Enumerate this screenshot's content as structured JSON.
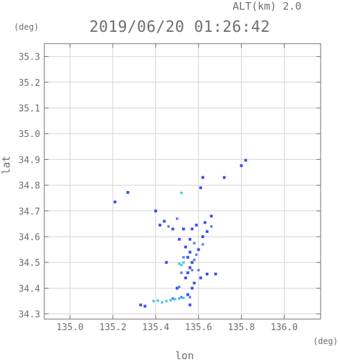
{
  "header": {
    "altitude_label": "ALT(km) 2.0",
    "timestamp": "2019/06/20 01:26:42"
  },
  "chart_data": {
    "type": "scatter",
    "title": "2019/06/20 01:26:42",
    "xlabel": "lon",
    "ylabel": "lat",
    "x_unit": "(deg)",
    "y_unit": "(deg)",
    "xlim": [
      134.88,
      136.17
    ],
    "ylim": [
      34.28,
      35.35
    ],
    "x_ticks": [
      135.0,
      135.2,
      135.4,
      135.6,
      135.8,
      136.0
    ],
    "x_tick_labels": [
      "135.0",
      "135.2",
      "135.4",
      "135.6",
      "135.8",
      "136.0"
    ],
    "y_ticks": [
      34.3,
      34.4,
      34.5,
      34.6,
      34.7,
      34.8,
      34.9,
      35.0,
      35.1,
      35.2,
      35.3
    ],
    "y_tick_labels": [
      "34.3",
      "34.4",
      "34.5",
      "34.6",
      "34.7",
      "34.8",
      "34.9",
      "35.0",
      "35.1",
      "35.2",
      "35.3"
    ],
    "grid": true,
    "colors": {
      "strong": "#3f4fe0",
      "medium": "#5d7df5",
      "light": "#48c8f0",
      "axis": "#6e6e6e",
      "grid": "#d4d4d4"
    },
    "series": [
      {
        "intensity": "strong",
        "points": [
          [
            135.8,
            34.876
          ],
          [
            135.82,
            34.897
          ],
          [
            135.27,
            34.772
          ],
          [
            135.21,
            34.735
          ],
          [
            135.51,
            34.59
          ],
          [
            135.56,
            34.59
          ],
          [
            135.54,
            34.56
          ],
          [
            135.56,
            34.54
          ],
          [
            135.55,
            34.52
          ],
          [
            135.57,
            34.5
          ],
          [
            135.56,
            34.48
          ],
          [
            135.55,
            34.46
          ],
          [
            135.54,
            34.44
          ],
          [
            135.61,
            34.44
          ],
          [
            135.58,
            34.42
          ],
          [
            135.64,
            34.455
          ],
          [
            135.68,
            34.455
          ],
          [
            135.6,
            34.55
          ],
          [
            135.62,
            34.6
          ],
          [
            135.64,
            34.62
          ],
          [
            135.63,
            34.655
          ],
          [
            135.59,
            34.645
          ],
          [
            135.57,
            34.63
          ],
          [
            135.44,
            34.66
          ],
          [
            135.42,
            34.645
          ],
          [
            135.53,
            34.63
          ],
          [
            135.45,
            34.5
          ],
          [
            135.5,
            34.4
          ],
          [
            135.57,
            34.4
          ],
          [
            135.55,
            34.375
          ],
          [
            135.56,
            34.335
          ],
          [
            135.33,
            34.335
          ],
          [
            135.35,
            34.33
          ],
          [
            135.61,
            34.79
          ],
          [
            135.62,
            34.83
          ],
          [
            135.72,
            34.83
          ],
          [
            135.4,
            34.7
          ],
          [
            135.48,
            34.63
          ],
          [
            135.66,
            34.68
          ]
        ]
      },
      {
        "intensity": "medium",
        "points": [
          [
            135.58,
            34.51
          ],
          [
            135.59,
            34.53
          ],
          [
            135.53,
            34.52
          ],
          [
            135.57,
            34.47
          ],
          [
            135.6,
            34.47
          ],
          [
            135.52,
            34.46
          ],
          [
            135.58,
            34.575
          ],
          [
            135.62,
            34.57
          ],
          [
            135.66,
            34.64
          ],
          [
            135.5,
            34.67
          ],
          [
            135.46,
            34.64
          ],
          [
            135.51,
            34.405
          ],
          [
            135.48,
            34.36
          ],
          [
            135.52,
            34.365
          ],
          [
            135.56,
            34.365
          ]
        ]
      },
      {
        "intensity": "light",
        "points": [
          [
            135.52,
            34.49
          ],
          [
            135.53,
            34.5
          ],
          [
            135.51,
            34.495
          ],
          [
            135.52,
            34.77
          ],
          [
            135.39,
            34.35
          ],
          [
            135.41,
            34.352
          ],
          [
            135.43,
            34.345
          ],
          [
            135.45,
            34.35
          ],
          [
            135.47,
            34.353
          ],
          [
            135.49,
            34.357
          ],
          [
            135.51,
            34.36
          ],
          [
            135.53,
            34.362
          ]
        ]
      }
    ]
  }
}
